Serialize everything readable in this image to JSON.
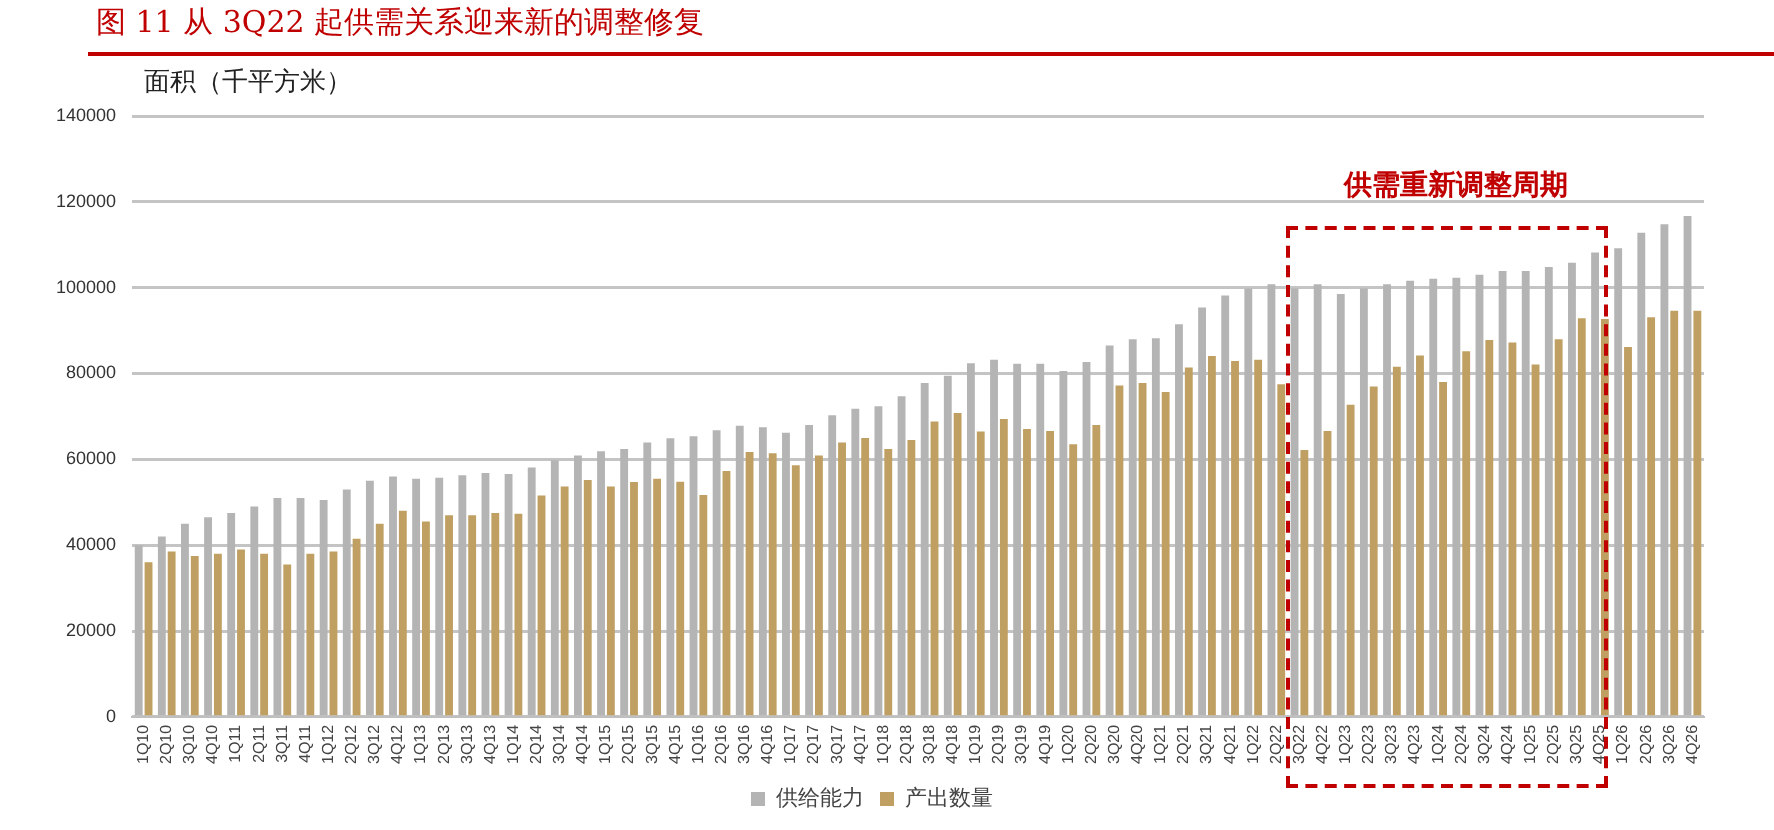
{
  "chart_data": {
    "type": "bar",
    "title": "图 11 从 3Q22 起供需关系迎来新的调整修复",
    "ylabel": "面积（千平方米）",
    "categories": [
      "1Q10",
      "2Q10",
      "3Q10",
      "4Q10",
      "1Q11",
      "2Q11",
      "3Q11",
      "4Q11",
      "1Q12",
      "2Q12",
      "3Q12",
      "4Q12",
      "1Q13",
      "2Q13",
      "3Q13",
      "4Q13",
      "1Q14",
      "2Q14",
      "3Q14",
      "4Q14",
      "1Q15",
      "2Q15",
      "3Q15",
      "4Q15",
      "1Q16",
      "2Q16",
      "3Q16",
      "4Q16",
      "1Q17",
      "2Q17",
      "3Q17",
      "4Q17",
      "1Q18",
      "2Q18",
      "3Q18",
      "4Q18",
      "1Q19",
      "2Q19",
      "3Q19",
      "4Q19",
      "1Q20",
      "2Q20",
      "3Q20",
      "4Q20",
      "1Q21",
      "2Q21",
      "3Q21",
      "4Q21",
      "1Q22",
      "2Q22",
      "3Q22",
      "4Q22",
      "1Q23",
      "2Q23",
      "3Q23",
      "4Q23",
      "1Q24",
      "2Q24",
      "3Q24",
      "4Q24",
      "1Q25",
      "2Q25",
      "3Q25",
      "4Q25",
      "1Q26",
      "2Q26",
      "3Q26",
      "4Q26"
    ],
    "series": [
      {
        "name": "供给能力",
        "color": "#b4b4b4",
        "values": [
          40000,
          42000,
          45000,
          46500,
          47500,
          49000,
          51000,
          51000,
          50500,
          53000,
          55000,
          56000,
          55500,
          55700,
          56300,
          56800,
          56600,
          58100,
          59800,
          60900,
          61900,
          62400,
          63900,
          64900,
          65400,
          66800,
          67800,
          67500,
          66200,
          68000,
          70300,
          71800,
          72400,
          74700,
          77800,
          79500,
          82400,
          83200,
          82300,
          82300,
          80600,
          82700,
          86500,
          88000,
          88200,
          91500,
          95400,
          98200,
          99800,
          100800,
          99800,
          100800,
          98500,
          99800,
          100800,
          101600,
          102100,
          102300,
          103000,
          103900,
          103900,
          104800,
          105800,
          108200,
          109200,
          112800,
          114800,
          116700
        ]
      },
      {
        "name": "产出数量",
        "color": "#c0a062",
        "values": [
          36000,
          38500,
          37500,
          38000,
          39000,
          38000,
          35500,
          38000,
          38500,
          41500,
          45000,
          48000,
          45500,
          47000,
          47000,
          47500,
          47300,
          51600,
          53700,
          55200,
          53700,
          54700,
          55500,
          54800,
          51700,
          57300,
          61700,
          61400,
          58600,
          60900,
          63900,
          65000,
          62400,
          64500,
          68800,
          70800,
          66500,
          69400,
          67100,
          66600,
          63500,
          68000,
          77200,
          77800,
          75700,
          81400,
          84100,
          82900,
          83200,
          77500,
          62200,
          66600,
          72700,
          77000,
          81600,
          84200,
          78000,
          85200,
          87800,
          87200,
          82100,
          88000,
          92900,
          92700,
          86200,
          93100,
          94600,
          94600
        ]
      }
    ],
    "ylim": [
      0,
      140000
    ],
    "yticks": [
      0,
      20000,
      40000,
      60000,
      80000,
      100000,
      120000,
      140000
    ],
    "grid": "y",
    "legend": "bottom",
    "annotations": [
      "供需重新调整周期"
    ]
  }
}
